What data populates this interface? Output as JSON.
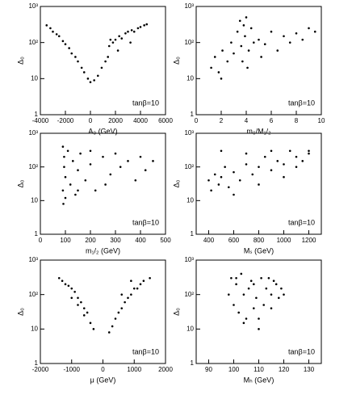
{
  "chart_data": [
    {
      "type": "scatter",
      "xlabel": "A₀ (GeV)",
      "ylabel": "Δ₀",
      "annotation": "tanβ=10",
      "color": "#000000",
      "log_y": true,
      "xlim": [
        -4000,
        6000
      ],
      "xticks": [
        -4000,
        -2000,
        0,
        2000,
        4000,
        6000
      ],
      "ylim": [
        1,
        1000
      ],
      "yticks": [
        1,
        10,
        {
          "value": 100,
          "label": "10²"
        },
        {
          "value": 1000,
          "label": "10³"
        }
      ],
      "x": [
        -3500,
        -3200,
        -3000,
        -2700,
        -2500,
        -2200,
        -2000,
        -1700,
        -1500,
        -1200,
        -1000,
        -700,
        -500,
        -200,
        0,
        300,
        600,
        900,
        1200,
        1500,
        1600,
        1800,
        2000,
        2300,
        2500,
        2800,
        3000,
        3300,
        3500,
        3800,
        4000,
        4300,
        4500,
        2200,
        3200,
        1400
      ],
      "y": [
        300,
        250,
        200,
        170,
        150,
        110,
        90,
        70,
        50,
        40,
        30,
        20,
        15,
        10,
        8,
        9,
        12,
        20,
        30,
        80,
        120,
        100,
        120,
        150,
        130,
        180,
        200,
        220,
        200,
        250,
        270,
        300,
        320,
        60,
        100,
        40
      ]
    },
    {
      "type": "scatter",
      "xlabel": "m₀/M₁/₂",
      "ylabel": "Δ₀",
      "annotation": "tanβ=10",
      "color": "#000000",
      "log_y": true,
      "xlim": [
        0,
        10
      ],
      "xticks": [
        0,
        2,
        4,
        6,
        8,
        10
      ],
      "ylim": [
        1,
        1000
      ],
      "yticks": [
        1,
        10,
        {
          "value": 100,
          "label": "10²"
        },
        {
          "value": 1000,
          "label": "10³"
        }
      ],
      "x": [
        1.2,
        1.5,
        1.8,
        2.1,
        2.5,
        2.8,
        3.0,
        3.3,
        3.5,
        3.6,
        3.8,
        3.9,
        4.0,
        4.2,
        4.4,
        4.6,
        5.0,
        5.5,
        6.0,
        6.5,
        7.0,
        7.5,
        8.0,
        8.5,
        9.0,
        9.5,
        3.7,
        4.1,
        2.0,
        5.2
      ],
      "y": [
        20,
        40,
        15,
        60,
        30,
        100,
        50,
        200,
        400,
        80,
        300,
        150,
        500,
        60,
        250,
        100,
        120,
        90,
        200,
        60,
        150,
        100,
        180,
        120,
        250,
        200,
        30,
        20,
        10,
        40
      ]
    },
    {
      "type": "scatter",
      "xlabel": "m₁/₂ (GeV)",
      "ylabel": "Δ₀",
      "annotation": "tanβ=10",
      "color": "#000000",
      "log_y": true,
      "xlim": [
        0,
        500
      ],
      "xticks": [
        0,
        100,
        200,
        300,
        400,
        500
      ],
      "ylim": [
        1,
        1000
      ],
      "yticks": [
        1,
        10,
        {
          "value": 100,
          "label": "10²"
        },
        {
          "value": 1000,
          "label": "10³"
        }
      ],
      "x": [
        90,
        90,
        92,
        95,
        95,
        100,
        110,
        120,
        130,
        140,
        150,
        160,
        180,
        200,
        220,
        250,
        280,
        300,
        320,
        350,
        380,
        400,
        420,
        450,
        100,
        150,
        200,
        260
      ],
      "y": [
        20,
        400,
        8,
        100,
        200,
        50,
        300,
        30,
        150,
        15,
        80,
        250,
        40,
        120,
        20,
        200,
        60,
        250,
        100,
        150,
        40,
        200,
        80,
        150,
        12,
        20,
        300,
        30
      ]
    },
    {
      "type": "scatter",
      "xlabel": "Mₛ (GeV)",
      "ylabel": "Δ₀",
      "annotation": "tanβ=10",
      "color": "#000000",
      "log_y": true,
      "xlim": [
        300,
        1300
      ],
      "xticks": [
        400,
        600,
        800,
        1000,
        1200
      ],
      "ylim": [
        1,
        1000
      ],
      "yticks": [
        1,
        10,
        {
          "value": 100,
          "label": "10²"
        },
        {
          "value": 1000,
          "label": "10³"
        }
      ],
      "x": [
        400,
        420,
        450,
        480,
        500,
        530,
        560,
        600,
        650,
        700,
        750,
        800,
        850,
        900,
        950,
        1000,
        1050,
        1100,
        1150,
        1200,
        1200,
        500,
        700,
        900,
        1100,
        600,
        800,
        1000
      ],
      "y": [
        40,
        20,
        60,
        30,
        50,
        100,
        25,
        70,
        40,
        120,
        60,
        100,
        200,
        80,
        150,
        120,
        300,
        200,
        150,
        250,
        300,
        300,
        250,
        300,
        100,
        15,
        30,
        50
      ]
    },
    {
      "type": "scatter",
      "xlabel": "μ (GeV)",
      "ylabel": "Δ₀",
      "annotation": "tanβ=10",
      "color": "#000000",
      "log_y": true,
      "xlim": [
        -2000,
        2000
      ],
      "xticks": [
        -2000,
        -1000,
        0,
        1000,
        2000
      ],
      "ylim": [
        1,
        1000
      ],
      "yticks": [
        1,
        10,
        {
          "value": 100,
          "label": "10²"
        },
        {
          "value": 1000,
          "label": "10³"
        }
      ],
      "x": [
        -1400,
        -1300,
        -1200,
        -1100,
        -1000,
        -900,
        -800,
        -700,
        -600,
        -500,
        -400,
        -300,
        -1000,
        -800,
        -600,
        200,
        300,
        400,
        500,
        600,
        700,
        800,
        900,
        1000,
        1100,
        1200,
        1300,
        1500,
        600,
        900
      ],
      "y": [
        300,
        250,
        200,
        180,
        150,
        120,
        80,
        60,
        40,
        30,
        15,
        10,
        80,
        50,
        25,
        8,
        12,
        20,
        30,
        40,
        60,
        80,
        100,
        150,
        150,
        200,
        250,
        300,
        100,
        250
      ]
    },
    {
      "type": "scatter",
      "xlabel": "Mₕ (GeV)",
      "ylabel": "Δ₀",
      "annotation": "tanβ=10",
      "color": "#000000",
      "log_y": true,
      "xlim": [
        85,
        135
      ],
      "xticks": [
        90,
        100,
        110,
        120,
        130
      ],
      "ylim": [
        1,
        1000
      ],
      "yticks": [
        1,
        10,
        {
          "value": 100,
          "label": "10²"
        },
        {
          "value": 1000,
          "label": "10³"
        }
      ],
      "x": [
        98,
        99,
        100,
        101,
        102,
        103,
        104,
        105,
        106,
        107,
        108,
        109,
        110,
        111,
        112,
        113,
        114,
        115,
        116,
        117,
        118,
        119,
        120,
        104,
        110,
        115,
        101,
        108
      ],
      "y": [
        100,
        300,
        50,
        200,
        30,
        400,
        100,
        20,
        150,
        250,
        40,
        80,
        10,
        300,
        50,
        150,
        300,
        100,
        250,
        200,
        80,
        150,
        100,
        15,
        20,
        40,
        300,
        200
      ]
    }
  ]
}
